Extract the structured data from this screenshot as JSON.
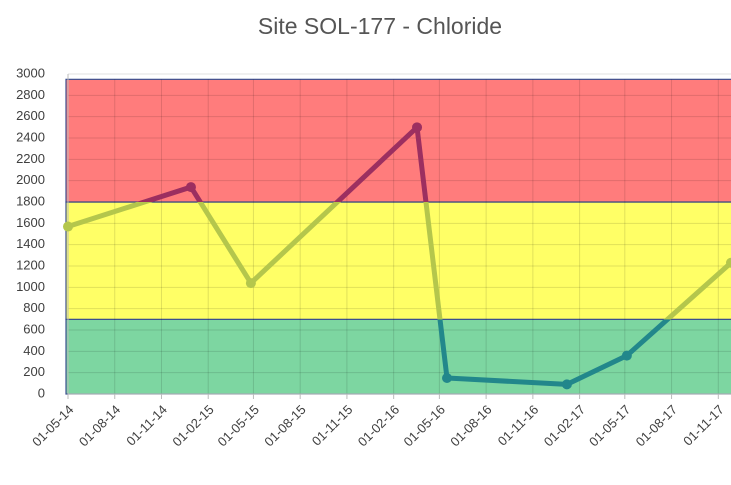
{
  "chart_data": {
    "type": "line",
    "title": "Site SOL-177 - Chloride",
    "x": [
      "2014-05-01",
      "2014-12-29",
      "2015-04-26",
      "2016-03-18",
      "2016-05-16",
      "2017-01-07",
      "2017-05-05",
      "2017-11-26"
    ],
    "series": [
      {
        "values": [
          1570,
          1940,
          1040,
          2500,
          150,
          90,
          360,
          1230
        ]
      }
    ],
    "xlim": [
      "2014-05-01",
      "2017-11-26"
    ],
    "xticks": [
      {
        "value": "2014-05-01",
        "label": "01-05-14"
      },
      {
        "value": "2014-08-01",
        "label": "01-08-14"
      },
      {
        "value": "2014-11-01",
        "label": "01-11-14"
      },
      {
        "value": "2015-02-01",
        "label": "01-02-15"
      },
      {
        "value": "2015-05-01",
        "label": "01-05-15"
      },
      {
        "value": "2015-08-01",
        "label": "01-08-15"
      },
      {
        "value": "2015-11-01",
        "label": "01-11-15"
      },
      {
        "value": "2016-02-01",
        "label": "01-02-16"
      },
      {
        "value": "2016-05-01",
        "label": "01-05-16"
      },
      {
        "value": "2016-08-01",
        "label": "01-08-16"
      },
      {
        "value": "2016-11-01",
        "label": "01-11-16"
      },
      {
        "value": "2017-02-01",
        "label": "01-02-17"
      },
      {
        "value": "2017-05-01",
        "label": "01-05-17"
      },
      {
        "value": "2017-08-01",
        "label": "01-08-17"
      },
      {
        "value": "2017-11-01",
        "label": "01-11-17"
      }
    ],
    "ylim": [
      0,
      3000
    ],
    "yticks": [
      0,
      200,
      400,
      600,
      800,
      1000,
      1200,
      1400,
      1600,
      1800,
      2000,
      2200,
      2400,
      2600,
      2800,
      3000
    ],
    "grid": true,
    "bands": [
      {
        "from": 0,
        "to": 700,
        "color": "#7dd6a1",
        "line_color": "#22878b"
      },
      {
        "from": 700,
        "to": 1800,
        "color": "#ffff66",
        "line_color": "#b4c64c"
      },
      {
        "from": 1800,
        "to": 2950,
        "color": "#ff7c7c",
        "line_color": "#9c2f60"
      }
    ]
  }
}
